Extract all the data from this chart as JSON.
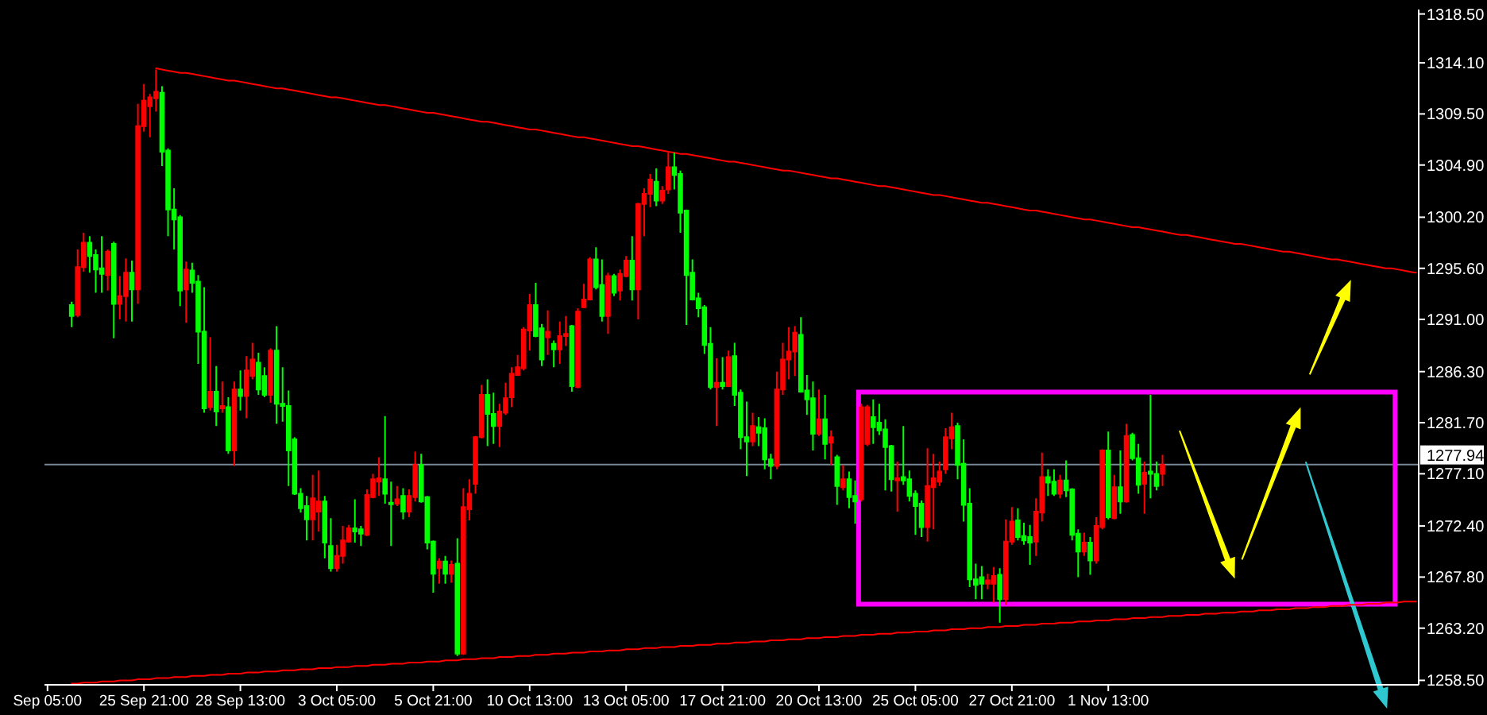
{
  "chart_data": {
    "type": "candlestick",
    "categories": [
      "Sep 05:00",
      null,
      null,
      null,
      null,
      null,
      null,
      null,
      null,
      null,
      null,
      null,
      null,
      null,
      null,
      null,
      "25 Sep 21:00",
      null,
      null,
      null,
      null,
      null,
      null,
      null,
      null,
      null,
      null,
      null,
      null,
      null,
      null,
      null,
      "28 Sep 13:00",
      null,
      null,
      null,
      null,
      null,
      null,
      null,
      null,
      null,
      null,
      null,
      null,
      null,
      null,
      null,
      "3 Oct 05:00",
      null,
      null,
      null,
      null,
      null,
      null,
      null,
      null,
      null,
      null,
      null,
      null,
      null,
      null,
      null,
      "5 Oct 21:00",
      null,
      null,
      null,
      null,
      null,
      null,
      null,
      null,
      null,
      null,
      null,
      null,
      null,
      null,
      null,
      "10 Oct 13:00",
      null,
      null,
      null,
      null,
      null,
      null,
      null,
      null,
      null,
      null,
      null,
      null,
      null,
      null,
      null,
      "13 Oct 05:00",
      null,
      null,
      null,
      null,
      null,
      null,
      null,
      null,
      null,
      null,
      null,
      null,
      null,
      null,
      null,
      "17 Oct 21:00",
      null,
      null,
      null,
      null,
      null,
      null,
      null,
      null,
      null,
      null,
      null,
      null,
      null,
      null,
      null,
      "20 Oct 13:00",
      null,
      null,
      null,
      null,
      null,
      null,
      null,
      null,
      null,
      null,
      null,
      null,
      null,
      null,
      null,
      "25 Oct 05:00",
      null,
      null,
      null,
      null,
      null,
      null,
      null,
      null,
      null,
      null,
      null,
      null,
      null,
      null,
      null,
      "27 Oct 21:00",
      null,
      null,
      null,
      null,
      null,
      null,
      null,
      null,
      null,
      null,
      null,
      null,
      null,
      null,
      null,
      "1 Nov 13:00",
      null,
      null,
      null,
      null,
      null,
      null,
      null,
      null,
      null,
      null,
      null,
      null,
      null,
      null,
      null,
      null,
      null,
      null,
      null,
      null,
      null,
      null,
      null,
      null,
      null,
      null,
      null,
      null,
      null,
      null,
      null,
      null,
      null,
      null,
      null,
      null,
      null,
      null,
      null,
      null,
      null,
      null,
      null,
      null,
      null,
      null,
      null,
      null,
      null,
      null,
      null
    ],
    "ylim": [
      1258.1,
      1318.9
    ],
    "yticks": [
      {
        "value": 1318.5,
        "label": "1318.50"
      },
      {
        "value": 1314.1,
        "label": "1314.10"
      },
      {
        "value": 1309.5,
        "label": "1309.50"
      },
      {
        "value": 1304.9,
        "label": "1304.90"
      },
      {
        "value": 1300.2,
        "label": "1300.20"
      },
      {
        "value": 1295.6,
        "label": "1295.60"
      },
      {
        "value": 1291,
        "label": "1291.00"
      },
      {
        "value": 1286.3,
        "label": "1286.30"
      },
      {
        "value": 1281.7,
        "label": "1281.70"
      },
      {
        "value": 1277.1,
        "label": "1277.10"
      },
      {
        "value": 1272.4,
        "label": "1272.40"
      },
      {
        "value": 1267.8,
        "label": "1267.80"
      },
      {
        "value": 1263.2,
        "label": "1263.20"
      },
      {
        "value": 1258.5,
        "label": "1258.50"
      }
    ],
    "ohlc": [
      null,
      null,
      null,
      null,
      [
        1292.3,
        1292.6,
        1290.3,
        1291.3
      ],
      [
        1291.4,
        1297.3,
        1291.2,
        1295.7
      ],
      [
        1295.7,
        1298.8,
        1295.3,
        1297.9
      ],
      [
        1297.9,
        1298.5,
        1295.2,
        1296.7
      ],
      [
        1296.8,
        1297.3,
        1293.4,
        1295.5
      ],
      [
        1295.6,
        1298.5,
        1293.4,
        1295.1
      ],
      [
        1295.0,
        1297.3,
        1293.6,
        1297.1
      ],
      [
        1297.8,
        1298.0,
        1289.3,
        1292.4
      ],
      [
        1292.4,
        1294.9,
        1291.0,
        1293.1
      ],
      [
        1293.1,
        1296.5,
        1290.8,
        1295.2
      ],
      [
        1295.2,
        1296.3,
        1290.8,
        1293.7
      ],
      [
        1293.7,
        1310.4,
        1292.4,
        1308.4
      ],
      [
        1308.4,
        1312.2,
        1307.9,
        1310.7
      ],
      [
        1310.2,
        1311.3,
        1307.4,
        1311.0
      ],
      [
        1310.9,
        1313.5,
        1309.7,
        1311.5
      ],
      [
        1311.4,
        1312.0,
        1304.8,
        1306.1
      ],
      [
        1306.2,
        1306.4,
        1298.5,
        1300.9
      ],
      [
        1300.9,
        1302.8,
        1297.3,
        1300.0
      ],
      [
        1300.2,
        1300.4,
        1292.2,
        1293.6
      ],
      [
        1293.7,
        1296.2,
        1290.7,
        1295.5
      ],
      [
        1295.4,
        1296.1,
        1293.4,
        1294.3
      ],
      [
        1294.4,
        1295.0,
        1287.0,
        1289.9
      ],
      [
        1289.9,
        1293.9,
        1282.6,
        1283.0
      ],
      [
        1283.1,
        1289.4,
        1282.8,
        1284.5
      ],
      [
        1284.5,
        1286.8,
        1281.4,
        1282.7
      ],
      [
        1283.0,
        1285.4,
        1282.6,
        1283.2
      ],
      [
        1283.1,
        1284.0,
        1278.9,
        1279.2
      ],
      [
        1279.2,
        1285.4,
        1277.8,
        1284.7
      ],
      [
        1284.7,
        1286.4,
        1282.8,
        1284.1
      ],
      [
        1284.1,
        1287.7,
        1282.1,
        1286.4
      ],
      [
        1285.9,
        1288.9,
        1285.6,
        1287.4
      ],
      [
        1287.1,
        1288.0,
        1284.2,
        1284.7
      ],
      [
        1285.9,
        1286.7,
        1284.0,
        1284.2
      ],
      [
        1284.2,
        1288.4,
        1283.5,
        1288.2
      ],
      [
        1288.2,
        1290.4,
        1281.6,
        1283.4
      ],
      [
        1283.4,
        1286.7,
        1281.8,
        1283.2
      ],
      [
        1283.2,
        1284.6,
        1276.0,
        1279.2
      ],
      [
        1280.2,
        1280.4,
        1275.2,
        1275.3
      ],
      [
        1275.3,
        1275.8,
        1273.6,
        1274.0
      ],
      [
        1274.2,
        1275.1,
        1271.1,
        1273.0
      ],
      [
        1273.0,
        1277.0,
        1271.1,
        1274.9
      ],
      [
        1273.7,
        1277.4,
        1271.9,
        1274.6
      ],
      [
        1274.6,
        1275.1,
        1269.5,
        1270.9
      ],
      [
        1270.6,
        1273.1,
        1268.3,
        1268.6
      ],
      [
        1268.6,
        1270.7,
        1268.3,
        1269.7
      ],
      [
        1269.7,
        1272.4,
        1269.0,
        1271.1
      ],
      [
        1271.0,
        1272.5,
        1270.9,
        1272.2
      ],
      [
        1272.2,
        1274.8,
        1270.9,
        1271.9
      ],
      [
        1272.1,
        1272.4,
        1270.6,
        1271.7
      ],
      [
        1271.6,
        1275.7,
        1271.5,
        1275.2
      ],
      [
        1275.0,
        1277.1,
        1274.9,
        1276.6
      ],
      [
        1276.4,
        1278.6,
        1275.1,
        1276.7
      ],
      [
        1276.6,
        1282.3,
        1274.4,
        1275.3
      ],
      [
        1274.5,
        1276.4,
        1270.6,
        1274.4
      ],
      [
        1274.4,
        1276.0,
        1274.2,
        1274.8
      ],
      [
        1275.1,
        1275.8,
        1273.0,
        1273.7
      ],
      [
        1273.7,
        1275.7,
        1273.2,
        1275.1
      ],
      [
        1275.0,
        1279.1,
        1274.6,
        1277.9
      ],
      [
        1277.9,
        1278.9,
        1274.5,
        1274.6
      ],
      [
        1275.0,
        1275.1,
        1270.3,
        1270.9
      ],
      [
        1271.0,
        1271.1,
        1266.4,
        1268.1
      ],
      [
        1268.6,
        1269.5,
        1267.2,
        1269.2
      ],
      [
        1269.2,
        1269.7,
        1267.2,
        1268.1
      ],
      [
        1268.1,
        1269.3,
        1267.3,
        1268.9
      ],
      [
        1269.0,
        1271.3,
        1260.7,
        1260.9
      ],
      [
        1260.9,
        1275.8,
        1260.8,
        1274.1
      ],
      [
        1273.9,
        1276.6,
        1272.9,
        1275.3
      ],
      [
        1276.2,
        1280.5,
        1275.3,
        1280.4
      ],
      [
        1280.4,
        1285.1,
        1280.3,
        1284.2
      ],
      [
        1284.2,
        1285.6,
        1279.6,
        1282.5
      ],
      [
        1282.5,
        1284.4,
        1279.8,
        1281.4
      ],
      [
        1281.4,
        1283.4,
        1279.5,
        1282.7
      ],
      [
        1282.6,
        1285.3,
        1282.4,
        1283.9
      ],
      [
        1284.0,
        1286.7,
        1283.1,
        1286.1
      ],
      [
        1286.0,
        1287.8,
        1285.9,
        1286.7
      ],
      [
        1286.6,
        1290.3,
        1286.4,
        1290.1
      ],
      [
        1290.0,
        1293.3,
        1288.2,
        1292.3
      ],
      [
        1292.3,
        1294.3,
        1289.4,
        1289.5
      ],
      [
        1290.2,
        1290.6,
        1286.8,
        1287.4
      ],
      [
        1289.4,
        1291.8,
        1287.8,
        1289.9
      ],
      [
        1288.8,
        1289.1,
        1286.7,
        1288.3
      ],
      [
        1288.3,
        1290.8,
        1287.0,
        1289.5
      ],
      [
        1289.5,
        1291.3,
        1288.6,
        1289.7
      ],
      [
        1290.4,
        1290.5,
        1284.5,
        1285.0
      ],
      [
        1284.9,
        1292.0,
        1284.8,
        1291.7
      ],
      [
        1292.1,
        1294.2,
        1292.0,
        1292.8
      ],
      [
        1292.8,
        1296.6,
        1292.7,
        1296.4
      ],
      [
        1296.4,
        1297.5,
        1293.7,
        1293.9
      ],
      [
        1294.1,
        1296.4,
        1290.8,
        1291.3
      ],
      [
        1291.3,
        1295.2,
        1289.7,
        1294.9
      ],
      [
        1294.9,
        1295.1,
        1293.1,
        1293.4
      ],
      [
        1293.6,
        1295.5,
        1292.7,
        1295.1
      ],
      [
        1294.9,
        1296.7,
        1294.8,
        1296.3
      ],
      [
        1296.3,
        1298.5,
        1292.7,
        1293.7
      ],
      [
        1293.7,
        1301.5,
        1291.0,
        1301.4
      ],
      [
        1301.4,
        1302.8,
        1298.5,
        1302.3
      ],
      [
        1302.3,
        1304.1,
        1301.1,
        1303.6
      ],
      [
        1303.4,
        1304.6,
        1301.2,
        1301.7
      ],
      [
        1301.7,
        1303.0,
        1301.4,
        1302.6
      ],
      [
        1302.7,
        1306.0,
        1302.3,
        1304.7
      ],
      [
        1304.7,
        1306.0,
        1302.7,
        1304.0
      ],
      [
        1304.1,
        1304.4,
        1298.8,
        1300.6
      ],
      [
        1300.8,
        1300.9,
        1290.5,
        1295.0
      ],
      [
        1295.2,
        1296.4,
        1292.7,
        1292.8
      ],
      [
        1292.9,
        1293.4,
        1291.2,
        1292.0
      ],
      [
        1292.1,
        1292.3,
        1287.9,
        1288.7
      ],
      [
        1288.8,
        1290.3,
        1284.7,
        1284.9
      ],
      [
        1284.9,
        1287.5,
        1281.4,
        1285.3
      ],
      [
        1285.3,
        1287.6,
        1284.7,
        1285.0
      ],
      [
        1285.0,
        1288.2,
        1284.9,
        1287.6
      ],
      [
        1287.7,
        1288.9,
        1283.2,
        1284.2
      ],
      [
        1284.4,
        1284.7,
        1279.3,
        1280.4
      ],
      [
        1280.4,
        1283.6,
        1276.9,
        1280.0
      ],
      [
        1280.0,
        1282.6,
        1279.6,
        1281.4
      ],
      [
        1281.3,
        1282.2,
        1279.6,
        1280.8
      ],
      [
        1281.2,
        1282.1,
        1277.5,
        1278.4
      ],
      [
        1278.4,
        1278.9,
        1276.6,
        1277.8
      ],
      [
        1277.8,
        1286.3,
        1277.5,
        1284.7
      ],
      [
        1284.7,
        1288.9,
        1284.2,
        1287.4
      ],
      [
        1287.4,
        1290.3,
        1285.6,
        1288.1
      ],
      [
        1288.1,
        1290.4,
        1285.9,
        1289.8
      ],
      [
        1289.6,
        1291.2,
        1284.4,
        1284.5
      ],
      [
        1284.6,
        1286.0,
        1282.4,
        1283.8
      ],
      [
        1283.9,
        1285.4,
        1279.2,
        1280.7
      ],
      [
        1280.7,
        1284.7,
        1280.5,
        1282.0
      ],
      [
        1282.0,
        1284.2,
        1278.4,
        1279.8
      ],
      [
        1279.9,
        1281.0,
        1277.9,
        1280.4
      ],
      [
        1278.6,
        1278.8,
        1274.3,
        1276.0
      ],
      [
        1275.9,
        1277.9,
        1275.6,
        1276.6
      ],
      [
        1276.6,
        1277.3,
        1274.0,
        1275.0
      ],
      [
        1275.1,
        1276.5,
        1272.6,
        1274.6
      ],
      [
        1274.8,
        1283.4,
        1274.6,
        1283.1
      ],
      [
        1279.8,
        1283.3,
        1279.6,
        1283.1
      ],
      [
        1282.2,
        1283.8,
        1279.8,
        1281.3
      ],
      [
        1281.7,
        1283.4,
        1280.6,
        1281.0
      ],
      [
        1281.1,
        1282.0,
        1275.6,
        1279.5
      ],
      [
        1279.6,
        1279.7,
        1275.5,
        1276.6
      ],
      [
        1276.5,
        1278.2,
        1273.7,
        1276.7
      ],
      [
        1276.8,
        1281.4,
        1276.1,
        1276.5
      ],
      [
        1276.6,
        1277.4,
        1274.6,
        1275.1
      ],
      [
        1275.3,
        1275.6,
        1271.6,
        1274.2
      ],
      [
        1274.4,
        1274.7,
        1271.4,
        1272.3
      ],
      [
        1272.3,
        1279.4,
        1271.0,
        1276.0
      ],
      [
        1275.9,
        1278.9,
        1272.1,
        1276.7
      ],
      [
        1276.4,
        1278.2,
        1276.0,
        1277.3
      ],
      [
        1277.5,
        1281.2,
        1277.1,
        1280.4
      ],
      [
        1280.3,
        1282.6,
        1279.3,
        1281.3
      ],
      [
        1281.4,
        1281.7,
        1276.6,
        1277.9
      ],
      [
        1278.0,
        1280.2,
        1272.8,
        1274.3
      ],
      [
        1274.4,
        1275.8,
        1266.9,
        1267.6
      ],
      [
        1267.6,
        1269.0,
        1265.8,
        1267.1
      ],
      [
        1267.8,
        1268.8,
        1265.8,
        1267.2
      ],
      [
        1267.2,
        1268.1,
        1266.7,
        1267.5
      ],
      [
        1267.2,
        1268.7,
        1265.5,
        1267.9
      ],
      [
        1268.0,
        1268.6,
        1263.7,
        1265.8
      ],
      [
        1265.8,
        1273.0,
        1265.3,
        1271.0
      ],
      [
        1271.0,
        1274.1,
        1270.7,
        1272.8
      ],
      [
        1272.9,
        1274.0,
        1271.1,
        1271.4
      ],
      [
        1271.5,
        1272.7,
        1270.7,
        1271.1
      ],
      [
        1271.4,
        1272.5,
        1268.9,
        1270.9
      ],
      [
        1271.0,
        1274.9,
        1269.7,
        1273.7
      ],
      [
        1273.6,
        1279.0,
        1272.8,
        1276.8
      ],
      [
        1276.8,
        1277.5,
        1275.1,
        1276.3
      ],
      [
        1276.4,
        1277.5,
        1275.1,
        1275.3
      ],
      [
        1275.3,
        1277.0,
        1274.9,
        1276.5
      ],
      [
        1276.5,
        1278.3,
        1275.0,
        1275.6
      ],
      [
        1275.7,
        1275.8,
        1271.1,
        1271.6
      ],
      [
        1271.7,
        1272.1,
        1267.8,
        1270.1
      ],
      [
        1270.1,
        1271.8,
        1269.7,
        1270.9
      ],
      [
        1270.9,
        1271.4,
        1268.0,
        1269.3
      ],
      [
        1269.3,
        1273.2,
        1269.0,
        1272.4
      ],
      [
        1272.3,
        1279.3,
        1272.1,
        1279.2
      ],
      [
        1279.2,
        1280.9,
        1273.0,
        1273.2
      ],
      [
        1273.1,
        1277.0,
        1273.0,
        1275.9
      ],
      [
        1275.9,
        1279.2,
        1273.5,
        1274.6
      ],
      [
        1274.6,
        1281.6,
        1274.5,
        1280.5
      ],
      [
        1280.6,
        1280.8,
        1278.3,
        1278.5
      ],
      [
        1278.5,
        1279.8,
        1275.3,
        1276.1
      ],
      [
        1276.2,
        1278.2,
        1273.5,
        1277.2
      ],
      [
        1277.3,
        1284.2,
        1274.9,
        1277.1
      ],
      [
        1277.1,
        1278.2,
        1275.6,
        1276.0
      ],
      [
        1277.1,
        1278.8,
        1276.0,
        1277.9
      ],
      null,
      null,
      null,
      null,
      null,
      null,
      null,
      null,
      null,
      null,
      null,
      null,
      null,
      null,
      null,
      null,
      null,
      null,
      null,
      null,
      null,
      null,
      null,
      null,
      null,
      null,
      null,
      null,
      null,
      null,
      null,
      null,
      null,
      null,
      null,
      null,
      null,
      null,
      null,
      null,
      null,
      null
    ],
    "colors": [
      null,
      null,
      null,
      null,
      "#00ff00",
      "#ff0000",
      "#ff0000",
      "#00ff00",
      "#00ff00",
      "#00ff00",
      "#ff0000",
      "#00ff00",
      "#ff0000",
      "#ff0000",
      "#00ff00",
      "#ff0000",
      "#ff0000",
      "#ff0000",
      "#ff0000",
      "#00ff00",
      "#00ff00",
      "#00ff00",
      "#00ff00",
      "#ff0000",
      "#00ff00",
      "#00ff00",
      "#00ff00",
      "#ff0000",
      "#00ff00",
      "#ff0000",
      "#00ff00",
      "#ff0000",
      "#00ff00",
      "#ff0000",
      "#ff0000",
      "#00ff00",
      "#00ff00",
      "#ff0000",
      "#00ff00",
      "#00ff00",
      "#00ff00",
      "#00ff00",
      "#00ff00",
      "#00ff00",
      "#ff0000",
      "#ff0000",
      "#00ff00",
      "#00ff00",
      "#ff0000",
      "#ff0000",
      "#ff0000",
      "#00ff00",
      "#00ff00",
      "#ff0000",
      "#ff0000",
      "#ff0000",
      "#00ff00",
      "#00ff00",
      "#ff0000",
      "#00ff00",
      "#ff0000",
      "#ff0000",
      "#00ff00",
      "#00ff00",
      "#00ff00",
      "#ff0000",
      "#00ff00",
      "#ff0000",
      "#00ff00",
      "#ff0000",
      "#ff0000",
      "#ff0000",
      "#ff0000",
      "#00ff00",
      "#00ff00",
      "#ff0000",
      "#ff0000",
      "#ff0000",
      "#ff0000",
      "#ff0000",
      "#ff0000",
      "#00ff00",
      "#00ff00",
      "#ff0000",
      "#00ff00",
      "#ff0000",
      "#ff0000",
      "#00ff00",
      "#ff0000",
      "#ff0000",
      "#ff0000",
      "#00ff00",
      "#00ff00",
      "#ff0000",
      "#00ff00",
      "#ff0000",
      "#ff0000",
      "#00ff00",
      "#ff0000",
      "#ff0000",
      "#ff0000",
      "#00ff00",
      "#ff0000",
      "#ff0000",
      "#00ff00",
      "#00ff00",
      "#00ff00",
      "#00ff00",
      "#00ff00",
      "#00ff00",
      "#00ff00",
      "#ff0000",
      "#00ff00",
      "#ff0000",
      "#00ff00",
      "#00ff00",
      "#00ff00",
      "#ff0000",
      "#00ff00",
      "#00ff00",
      "#00ff00",
      "#ff0000",
      "#ff0000",
      "#ff0000",
      "#ff0000",
      "#00ff00",
      "#00ff00",
      "#00ff00",
      "#ff0000",
      "#00ff00",
      "#ff0000",
      "#00ff00",
      "#ff0000",
      "#00ff00",
      "#00ff00",
      "#ff0000",
      "#ff0000",
      "#00ff00",
      "#00ff00",
      "#00ff00",
      "#00ff00",
      "#ff0000",
      "#00ff00",
      "#00ff00",
      "#00ff00",
      "#00ff00",
      "#ff0000",
      "#ff0000",
      "#ff0000",
      "#ff0000",
      "#ff0000",
      "#00ff00",
      "#00ff00",
      "#00ff00",
      "#00ff00",
      "#00ff00",
      "#ff0000",
      "#ff0000",
      "#00ff00",
      "#ff0000",
      "#ff0000",
      "#00ff00",
      "#00ff00",
      "#00ff00",
      "#ff0000",
      "#ff0000",
      "#00ff00",
      "#00ff00",
      "#ff0000",
      "#00ff00",
      "#00ff00",
      "#00ff00",
      "#ff0000",
      "#00ff00",
      "#ff0000",
      "#ff0000",
      "#00ff00",
      "#ff0000",
      "#00ff00",
      "#ff0000",
      "#00ff00",
      "#00ff00",
      "#ff0000",
      "#00ff00",
      "#00ff00",
      "#ff0000",
      null,
      null,
      null,
      null,
      null,
      null,
      null,
      null,
      null,
      null,
      null,
      null,
      null,
      null,
      null,
      null,
      null,
      null,
      null,
      null,
      null,
      null,
      null,
      null,
      null,
      null,
      null,
      null,
      null,
      null,
      null,
      null,
      null,
      null,
      null,
      null,
      null,
      null,
      null,
      null,
      null,
      null
    ],
    "series": [
      {
        "type": "line",
        "color": "#ff0000",
        "values": [
          null,
          null,
          null,
          null,
          null,
          null,
          null,
          null,
          null,
          null,
          null,
          null,
          null,
          null,
          null,
          null,
          null,
          null,
          1313.6,
          1313.5,
          1313.4,
          1313.3,
          1313.2,
          1313.2,
          1313.1,
          1313.0,
          1312.9,
          1312.8,
          1312.7,
          1312.6,
          1312.5,
          1312.5,
          1312.4,
          1312.3,
          1312.2,
          1312.1,
          1312.0,
          1311.9,
          1311.8,
          1311.8,
          1311.7,
          1311.6,
          1311.5,
          1311.4,
          1311.3,
          1311.2,
          1311.1,
          1311.0,
          1311.0,
          1310.9,
          1310.8,
          1310.7,
          1310.6,
          1310.5,
          1310.4,
          1310.3,
          1310.3,
          1310.2,
          1310.1,
          1310.0,
          1309.9,
          1309.8,
          1309.7,
          1309.6,
          1309.6,
          1309.5,
          1309.4,
          1309.3,
          1309.2,
          1309.1,
          1309.0,
          1308.9,
          1308.8,
          1308.8,
          1308.7,
          1308.6,
          1308.5,
          1308.4,
          1308.3,
          1308.2,
          1308.1,
          1308.1,
          1308.0,
          1307.9,
          1307.8,
          1307.7,
          1307.6,
          1307.5,
          1307.4,
          1307.4,
          1307.3,
          1307.2,
          1307.1,
          1307.0,
          1306.9,
          1306.8,
          1306.7,
          1306.6,
          1306.6,
          1306.5,
          1306.4,
          1306.3,
          1306.2,
          1306.1,
          1306.0,
          1305.9,
          1305.9,
          1305.8,
          1305.7,
          1305.6,
          1305.5,
          1305.4,
          1305.3,
          1305.2,
          1305.2,
          1305.1,
          1305.0,
          1304.9,
          1304.8,
          1304.7,
          1304.6,
          1304.5,
          1304.4,
          1304.4,
          1304.3,
          1304.2,
          1304.1,
          1304.0,
          1303.9,
          1303.8,
          1303.7,
          1303.7,
          1303.6,
          1303.5,
          1303.4,
          1303.3,
          1303.2,
          1303.1,
          1303.0,
          1303.0,
          1302.9,
          1302.8,
          1302.7,
          1302.6,
          1302.5,
          1302.4,
          1302.3,
          1302.2,
          1302.2,
          1302.1,
          1302.0,
          1301.9,
          1301.8,
          1301.7,
          1301.6,
          1301.5,
          1301.5,
          1301.4,
          1301.3,
          1301.2,
          1301.1,
          1301.0,
          1300.9,
          1300.8,
          1300.8,
          1300.7,
          1300.6,
          1300.5,
          1300.4,
          1300.3,
          1300.2,
          1300.1,
          1300.0,
          1300.0,
          1299.9,
          1299.8,
          1299.7,
          1299.6,
          1299.5,
          1299.4,
          1299.3,
          1299.3,
          1299.2,
          1299.1,
          1299.0,
          1298.9,
          1298.8,
          1298.7,
          1298.6,
          1298.6,
          1298.5,
          1298.4,
          1298.3,
          1298.2,
          1298.1,
          1298.0,
          1297.9,
          1297.8,
          1297.8,
          1297.7,
          1297.6,
          1297.5,
          1297.4,
          1297.3,
          1297.2,
          1297.1,
          1297.1,
          1297.0,
          1296.9,
          1296.8,
          1296.7,
          1296.6,
          1296.5,
          1296.4,
          1296.4,
          1296.3,
          1296.2,
          1296.1,
          1296.0,
          1295.9,
          1295.8,
          1295.7,
          1295.6,
          1295.6,
          1295.5,
          1295.4,
          1295.3,
          1295.2
        ]
      },
      {
        "type": "line",
        "color": "#ff0000",
        "values": [
          null,
          null,
          null,
          null,
          1258.2,
          1258.2,
          1258.3,
          1258.3,
          1258.3,
          1258.4,
          1258.4,
          1258.4,
          1258.5,
          1258.5,
          1258.5,
          1258.6,
          1258.6,
          1258.6,
          1258.7,
          1258.7,
          1258.7,
          1258.8,
          1258.8,
          1258.8,
          1258.9,
          1258.9,
          1258.9,
          1259.0,
          1259.0,
          1259.0,
          1259.1,
          1259.1,
          1259.1,
          1259.2,
          1259.2,
          1259.2,
          1259.3,
          1259.3,
          1259.3,
          1259.4,
          1259.4,
          1259.4,
          1259.5,
          1259.5,
          1259.5,
          1259.6,
          1259.6,
          1259.6,
          1259.7,
          1259.7,
          1259.7,
          1259.8,
          1259.8,
          1259.8,
          1259.9,
          1259.9,
          1259.9,
          1260.0,
          1260.0,
          1260.0,
          1260.1,
          1260.1,
          1260.1,
          1260.2,
          1260.2,
          1260.2,
          1260.3,
          1260.3,
          1260.3,
          1260.4,
          1260.4,
          1260.4,
          1260.5,
          1260.5,
          1260.5,
          1260.6,
          1260.6,
          1260.6,
          1260.7,
          1260.7,
          1260.7,
          1260.8,
          1260.8,
          1260.8,
          1260.9,
          1260.9,
          1260.9,
          1261.0,
          1261.0,
          1261.0,
          1261.1,
          1261.1,
          1261.1,
          1261.2,
          1261.2,
          1261.2,
          1261.3,
          1261.3,
          1261.3,
          1261.4,
          1261.4,
          1261.4,
          1261.5,
          1261.5,
          1261.5,
          1261.6,
          1261.6,
          1261.6,
          1261.7,
          1261.7,
          1261.7,
          1261.8,
          1261.8,
          1261.8,
          1261.9,
          1261.9,
          1261.9,
          1262.0,
          1262.0,
          1262.0,
          1262.1,
          1262.1,
          1262.1,
          1262.2,
          1262.2,
          1262.2,
          1262.3,
          1262.3,
          1262.3,
          1262.4,
          1262.4,
          1262.4,
          1262.5,
          1262.5,
          1262.5,
          1262.6,
          1262.6,
          1262.6,
          1262.7,
          1262.7,
          1262.7,
          1262.8,
          1262.8,
          1262.8,
          1262.9,
          1262.9,
          1262.9,
          1263.0,
          1263.0,
          1263.0,
          1263.1,
          1263.1,
          1263.1,
          1263.2,
          1263.2,
          1263.2,
          1263.3,
          1263.3,
          1263.3,
          1263.4,
          1263.4,
          1263.4,
          1263.5,
          1263.5,
          1263.5,
          1263.6,
          1263.6,
          1263.6,
          1263.7,
          1263.7,
          1263.7,
          1263.8,
          1263.8,
          1263.8,
          1263.9,
          1263.9,
          1263.9,
          1264.0,
          1264.0,
          1264.0,
          1264.1,
          1264.1,
          1264.1,
          1264.2,
          1264.2,
          1264.2,
          1264.3,
          1264.3,
          1264.3,
          1264.4,
          1264.4,
          1264.4,
          1264.5,
          1264.5,
          1264.5,
          1264.6,
          1264.6,
          1264.6,
          1264.7,
          1264.7,
          1264.7,
          1264.8,
          1264.8,
          1264.8,
          1264.9,
          1264.9,
          1264.9,
          1265.0,
          1265.0,
          1265.0,
          1265.1,
          1265.1,
          1265.1,
          1265.2,
          1265.2,
          1265.2,
          1265.3,
          1265.3,
          1265.3,
          1265.4,
          1265.4,
          1265.4,
          1265.5,
          1265.5,
          1265.5,
          1265.6,
          1265.6,
          1265.6
        ]
      }
    ],
    "ref_lines": [
      {
        "axis": "y",
        "value": 1277.94,
        "label": "1277.94",
        "color": "#778899"
      }
    ]
  }
}
